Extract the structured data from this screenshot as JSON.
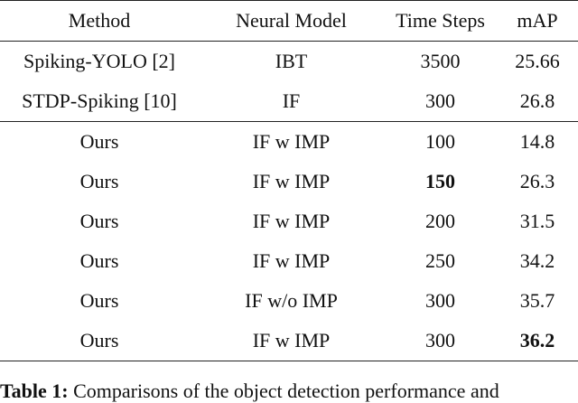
{
  "table": {
    "header": [
      "Method",
      "Neural Model",
      "Time Steps",
      "mAP"
    ],
    "rows": [
      [
        "Spiking-YOLO [2]",
        "IBT",
        "3500",
        "25.66"
      ],
      [
        "STDP-Spiking [10]",
        "IF",
        "300",
        "26.8"
      ],
      [
        "Ours",
        "IF w IMP",
        "100",
        "14.8"
      ],
      [
        "Ours",
        "IF w IMP",
        "150",
        "26.3"
      ],
      [
        "Ours",
        "IF w IMP",
        "200",
        "31.5"
      ],
      [
        "Ours",
        "IF w IMP",
        "250",
        "34.2"
      ],
      [
        "Ours",
        "IF w/o IMP",
        "300",
        "35.7"
      ],
      [
        "Ours",
        "IF w IMP",
        "300",
        "36.2"
      ]
    ],
    "bold_cells": [
      [
        3,
        2
      ],
      [
        7,
        3
      ]
    ],
    "separator_after_row": 1
  },
  "caption": {
    "label": "Table 1:",
    "text": " Comparisons of the object detection performance and"
  }
}
